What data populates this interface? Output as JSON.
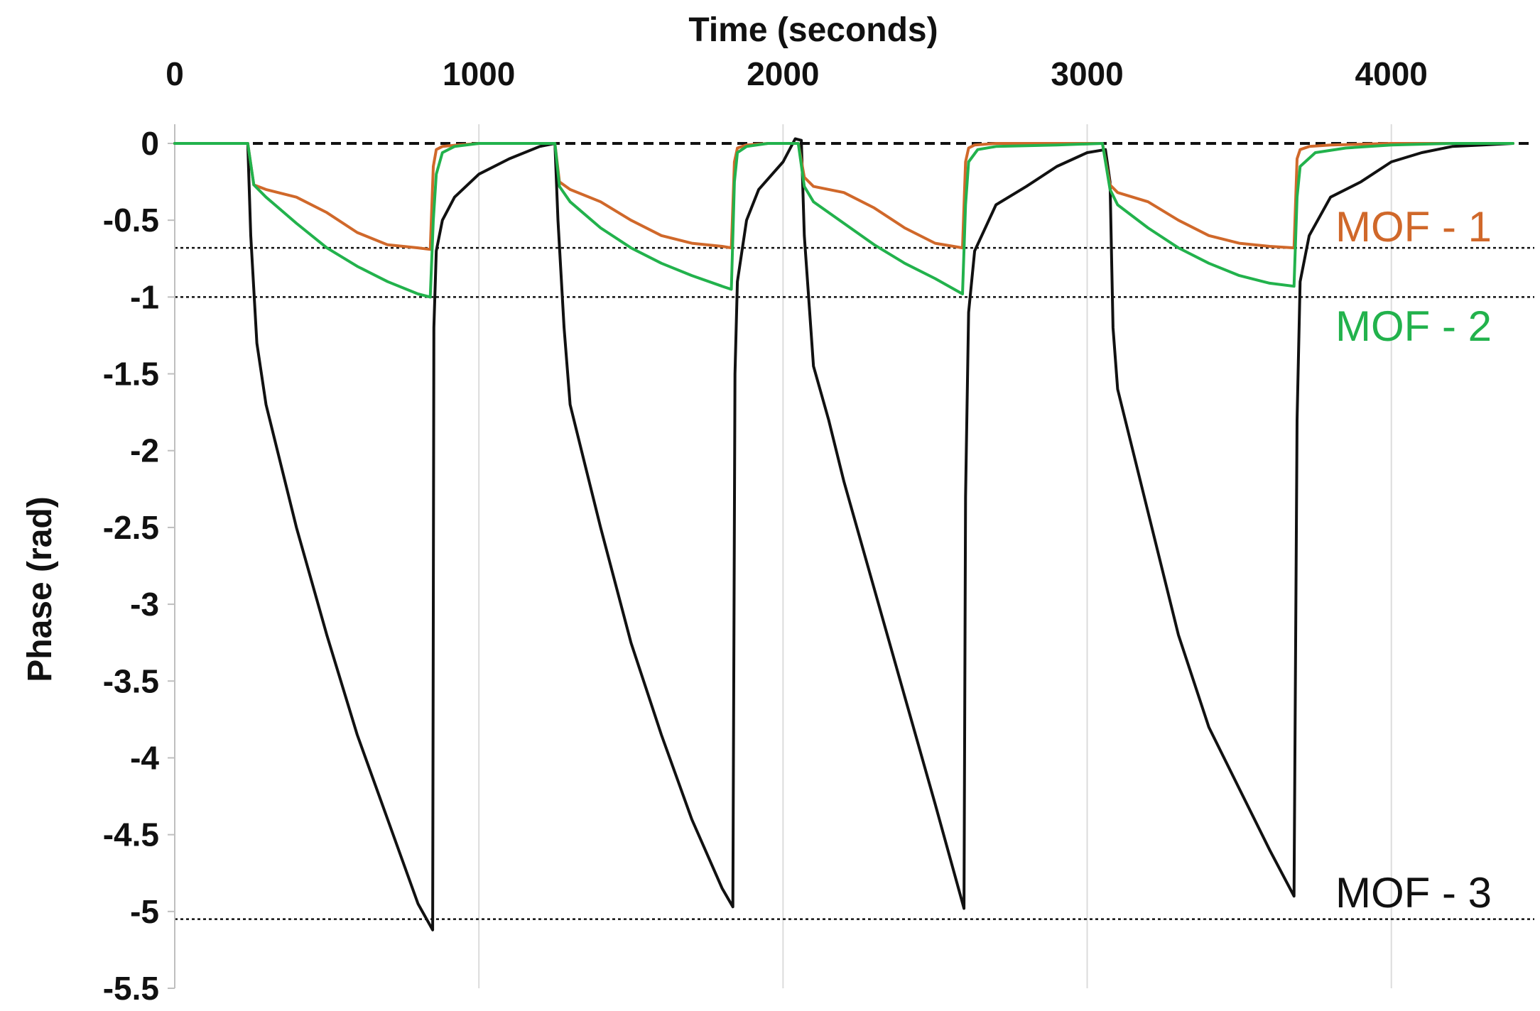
{
  "chart_data": {
    "type": "line",
    "xlabel": "Time (seconds)",
    "ylabel": "Phase (rad)",
    "xlim": [
      0,
      4400
    ],
    "ylim": [
      -5.5,
      0
    ],
    "xticks": [
      0,
      1000,
      2000,
      3000,
      4000
    ],
    "xtick_labels": [
      "0",
      "1000",
      "2000",
      "3000",
      "4000"
    ],
    "yticks": [
      0,
      -0.5,
      -1,
      -1.5,
      -2,
      -2.5,
      -3,
      -3.5,
      -4,
      -4.5,
      -5,
      -5.5
    ],
    "ytick_labels": [
      "0",
      "-0.5",
      "-1",
      "-1.5",
      "-2",
      "-2.5",
      "-3",
      "-3.5",
      "-4",
      "-4.5",
      "-5",
      "-5.5"
    ],
    "x_axis_position": "top",
    "grid": "vertical",
    "reference_lines": [
      {
        "y": 0,
        "style": "dashed"
      },
      {
        "y": -0.68,
        "style": "dotted"
      },
      {
        "y": -1.0,
        "style": "dotted"
      },
      {
        "y": -5.05,
        "style": "dotted"
      }
    ],
    "series": [
      {
        "name": "MOF - 1",
        "label": "MOF - 1",
        "color": "#D0682A",
        "x": [
          0,
          240,
          260,
          300,
          400,
          500,
          600,
          700,
          800,
          840,
          850,
          860,
          880,
          930,
          1000,
          1100,
          1200,
          1250,
          1265,
          1300,
          1400,
          1500,
          1600,
          1700,
          1800,
          1830,
          1840,
          1850,
          1880,
          1950,
          2050,
          2070,
          2100,
          2200,
          2300,
          2400,
          2500,
          2590,
          2600,
          2610,
          2630,
          2700,
          2900,
          3050,
          3075,
          3100,
          3200,
          3300,
          3400,
          3500,
          3600,
          3680,
          3690,
          3700,
          3730,
          3800,
          4000,
          4200,
          4400
        ],
        "y": [
          0,
          0,
          -0.27,
          -0.3,
          -0.35,
          -0.45,
          -0.58,
          -0.66,
          -0.68,
          -0.69,
          -0.15,
          -0.04,
          -0.02,
          -0.01,
          0,
          0,
          0,
          0,
          -0.25,
          -0.3,
          -0.38,
          -0.5,
          -0.6,
          -0.65,
          -0.67,
          -0.68,
          -0.12,
          -0.03,
          -0.01,
          0,
          0,
          -0.22,
          -0.28,
          -0.32,
          -0.42,
          -0.55,
          -0.65,
          -0.68,
          -0.12,
          -0.03,
          -0.01,
          0,
          0,
          0,
          -0.27,
          -0.32,
          -0.38,
          -0.5,
          -0.6,
          -0.65,
          -0.67,
          -0.68,
          -0.1,
          -0.04,
          -0.02,
          -0.01,
          0,
          0,
          0
        ]
      },
      {
        "name": "MOF - 2",
        "label": "MOF - 2",
        "color": "#22B24C",
        "x": [
          0,
          240,
          260,
          300,
          400,
          500,
          600,
          700,
          800,
          840,
          850,
          860,
          880,
          920,
          1000,
          1100,
          1200,
          1250,
          1265,
          1300,
          1400,
          1500,
          1600,
          1700,
          1800,
          1830,
          1840,
          1850,
          1880,
          1950,
          2050,
          2070,
          2100,
          2200,
          2300,
          2400,
          2500,
          2590,
          2600,
          2610,
          2640,
          2700,
          2900,
          3050,
          3075,
          3100,
          3200,
          3300,
          3400,
          3500,
          3600,
          3680,
          3690,
          3700,
          3750,
          3850,
          4000,
          4200,
          4400
        ],
        "y": [
          0,
          0,
          -0.27,
          -0.35,
          -0.52,
          -0.68,
          -0.8,
          -0.9,
          -0.98,
          -1.0,
          -0.5,
          -0.2,
          -0.06,
          -0.02,
          0,
          0,
          0,
          0,
          -0.28,
          -0.38,
          -0.55,
          -0.68,
          -0.78,
          -0.86,
          -0.93,
          -0.95,
          -0.25,
          -0.06,
          -0.02,
          0,
          0,
          -0.28,
          -0.38,
          -0.52,
          -0.66,
          -0.78,
          -0.88,
          -0.98,
          -0.4,
          -0.12,
          -0.04,
          -0.02,
          -0.01,
          0,
          -0.3,
          -0.4,
          -0.55,
          -0.68,
          -0.78,
          -0.86,
          -0.91,
          -0.93,
          -0.35,
          -0.15,
          -0.06,
          -0.03,
          -0.01,
          0,
          0
        ]
      },
      {
        "name": "MOF - 3",
        "label": "MOF - 3",
        "color": "#111111",
        "x": [
          0,
          240,
          250,
          270,
          300,
          350,
          400,
          500,
          600,
          700,
          800,
          848,
          852,
          860,
          880,
          920,
          1000,
          1100,
          1200,
          1250,
          1260,
          1280,
          1300,
          1350,
          1400,
          1500,
          1600,
          1700,
          1800,
          1835,
          1842,
          1850,
          1880,
          1920,
          2000,
          2040,
          2060,
          2070,
          2100,
          2150,
          2200,
          2300,
          2400,
          2500,
          2595,
          2600,
          2610,
          2630,
          2700,
          2800,
          2900,
          3000,
          3060,
          3075,
          3085,
          3100,
          3150,
          3200,
          3300,
          3400,
          3500,
          3600,
          3680,
          3690,
          3700,
          3730,
          3800,
          3900,
          4000,
          4100,
          4200,
          4300,
          4400
        ],
        "y": [
          0,
          0,
          -0.6,
          -1.3,
          -1.7,
          -2.1,
          -2.5,
          -3.2,
          -3.85,
          -4.4,
          -4.95,
          -5.12,
          -1.2,
          -0.7,
          -0.5,
          -0.35,
          -0.2,
          -0.1,
          -0.02,
          0,
          -0.5,
          -1.2,
          -1.7,
          -2.1,
          -2.5,
          -3.25,
          -3.85,
          -4.4,
          -4.85,
          -4.97,
          -1.5,
          -0.9,
          -0.5,
          -0.3,
          -0.12,
          0.03,
          0.02,
          -0.6,
          -1.45,
          -1.8,
          -2.2,
          -2.9,
          -3.6,
          -4.3,
          -4.98,
          -2.3,
          -1.1,
          -0.7,
          -0.4,
          -0.28,
          -0.15,
          -0.06,
          -0.04,
          -0.25,
          -1.2,
          -1.6,
          -2.0,
          -2.4,
          -3.2,
          -3.8,
          -4.2,
          -4.6,
          -4.9,
          -1.8,
          -0.9,
          -0.6,
          -0.35,
          -0.25,
          -0.12,
          -0.06,
          -0.02,
          -0.01,
          0
        ]
      }
    ]
  }
}
